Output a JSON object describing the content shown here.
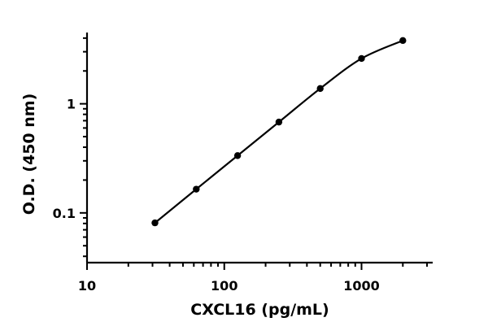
{
  "chart_data": {
    "type": "scatter",
    "title": "",
    "xlabel": "CXCL16 (pg/mL)",
    "ylabel": "O.D. (450 nm)",
    "x_scale": "log",
    "y_scale": "log",
    "xlim": [
      10,
      3300
    ],
    "ylim": [
      0.035,
      4.5
    ],
    "x_ticks": [
      10,
      100,
      1000
    ],
    "x_tick_labels": [
      "10",
      "100",
      "1000"
    ],
    "y_ticks": [
      0.1,
      1
    ],
    "y_tick_labels": [
      "0.1",
      "1"
    ],
    "grid": false,
    "legend": "none",
    "series": [
      {
        "x": [
          31.25,
          62.5,
          125,
          250,
          500,
          1000,
          2000
        ],
        "y": [
          0.081,
          0.165,
          0.335,
          0.68,
          1.38,
          2.6,
          3.8
        ],
        "markers": true,
        "fit_curve": true
      }
    ]
  }
}
